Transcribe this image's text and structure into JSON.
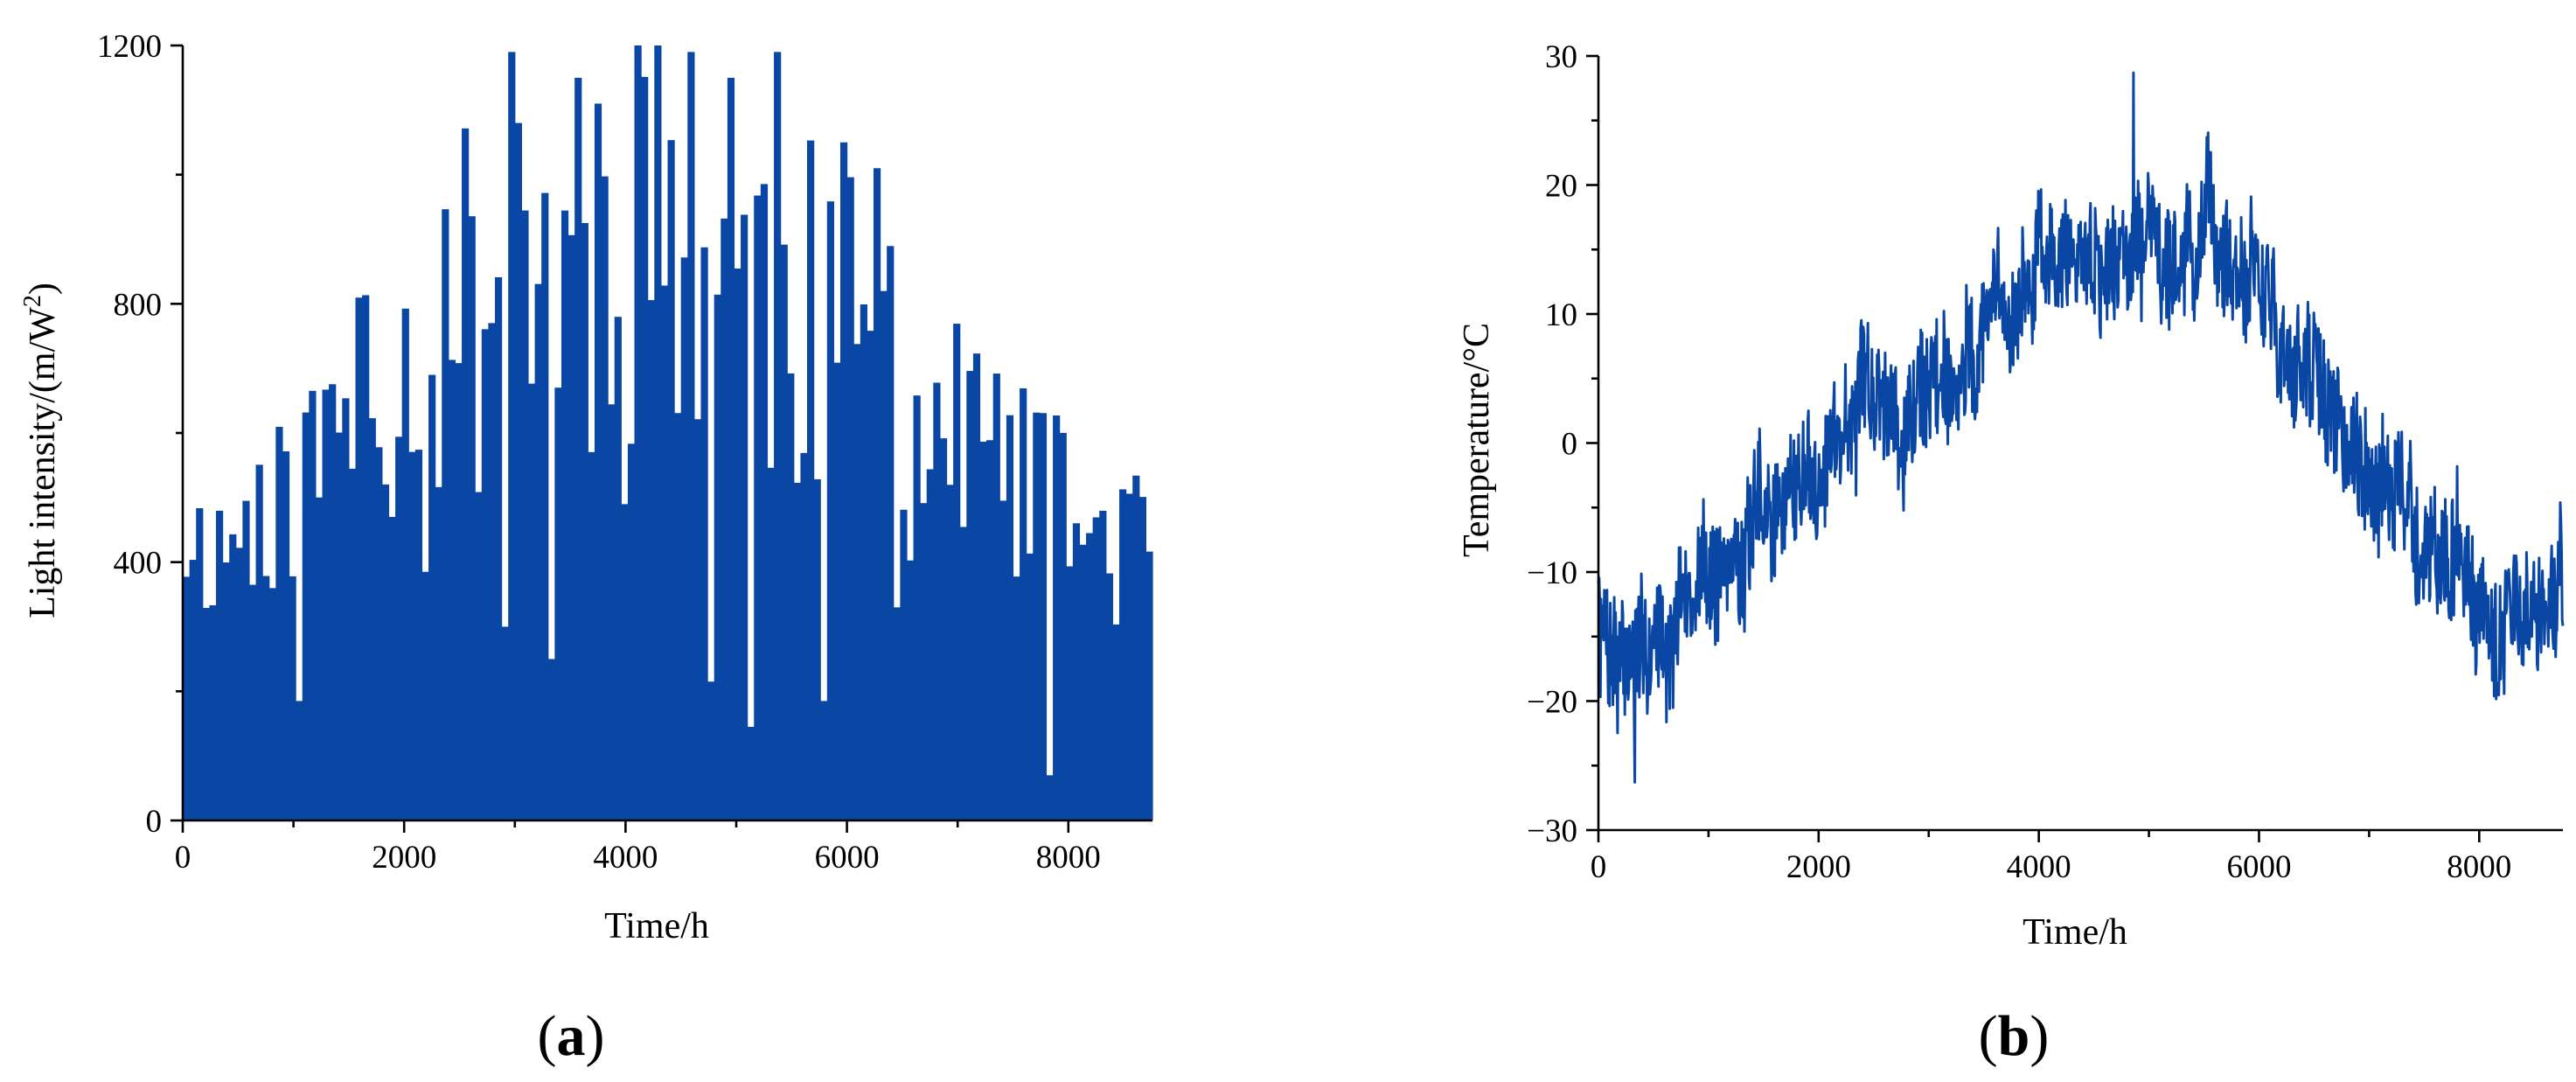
{
  "chart_data": [
    {
      "panel": "a",
      "type": "bar",
      "xlabel": "Time/h",
      "ylabel": "Light intensity/(m/W²)",
      "ylabel_parts": [
        "Light intensity/(m/W",
        "2",
        ")"
      ],
      "xlim": [
        0,
        8760
      ],
      "ylim": [
        0,
        1200
      ],
      "xticks": [
        0,
        2000,
        4000,
        6000,
        8000
      ],
      "yticks": [
        0,
        400,
        800,
        1200
      ],
      "grid": false,
      "color": "#0a47a5",
      "series_summary": {
        "x_resolution_h": 60,
        "envelope_x": [
          0,
          300,
          600,
          1000,
          1500,
          2000,
          2500,
          3000,
          3500,
          4000,
          4400,
          4800,
          5200,
          5600,
          6000,
          6400,
          6800,
          7200,
          7600,
          8000,
          8400,
          8760
        ],
        "envelope_max": [
          560,
          520,
          580,
          660,
          820,
          900,
          1080,
          1190,
          1130,
          1200,
          1200,
          1190,
          1130,
          1080,
          1000,
          880,
          800,
          740,
          680,
          600,
          560,
          530
        ],
        "envelope_min": [
          300,
          300,
          320,
          360,
          420,
          450,
          470,
          480,
          470,
          490,
          490,
          480,
          470,
          450,
          430,
          400,
          360,
          330,
          310,
          300,
          290,
          290
        ],
        "dips": [
          [
            1000,
            185
          ],
          [
            2180,
            385
          ],
          [
            2880,
            300
          ],
          [
            3270,
            250
          ],
          [
            4750,
            215
          ],
          [
            5120,
            145
          ],
          [
            5760,
            185
          ],
          [
            6420,
            330
          ],
          [
            7820,
            70
          ]
        ],
        "spikes": [
          [
            2940,
            1190
          ],
          [
            3010,
            1080
          ],
          [
            3560,
            1150
          ],
          [
            3690,
            1110
          ],
          [
            4060,
            1200
          ],
          [
            4240,
            1200
          ],
          [
            4540,
            1190
          ],
          [
            4930,
            1150
          ],
          [
            5360,
            1190
          ],
          [
            5940,
            1050
          ],
          [
            6230,
            1010
          ]
        ],
        "seed": 11
      }
    },
    {
      "panel": "b",
      "type": "line",
      "xlabel": "Time/h",
      "ylabel": "Temperature/°C",
      "xlim": [
        0,
        8760
      ],
      "ylim": [
        -30,
        30
      ],
      "xticks": [
        0,
        2000,
        4000,
        6000,
        8000
      ],
      "yticks": [
        -30,
        -20,
        -10,
        0,
        10,
        20,
        30
      ],
      "yticklabels": [
        "−30",
        "−20",
        "−10",
        "0",
        "10",
        "20",
        "30"
      ],
      "grid": false,
      "color": "#0a47a5",
      "series_summary": {
        "x_resolution_h": 6,
        "trend_x": [
          0,
          400,
          1000,
          1600,
          2000,
          2500,
          3000,
          3500,
          4000,
          4500,
          5000,
          5500,
          6000,
          6500,
          7000,
          7500,
          8000,
          8500,
          8760
        ],
        "trend_y": [
          -14,
          -17,
          -10,
          -6,
          0,
          3,
          5,
          9,
          13,
          15,
          16,
          16,
          11,
          4,
          -1,
          -8,
          -12,
          -14,
          -12
        ],
        "amplitude": 7,
        "global_max": [
          4860,
          28.7
        ],
        "global_min": [
          330,
          -26.3
        ],
        "seed": 7
      }
    }
  ],
  "panels": {
    "a": {
      "open": "(",
      "letter": "a",
      "close": ")"
    },
    "b": {
      "open": "(",
      "letter": "b",
      "close": ")"
    }
  }
}
